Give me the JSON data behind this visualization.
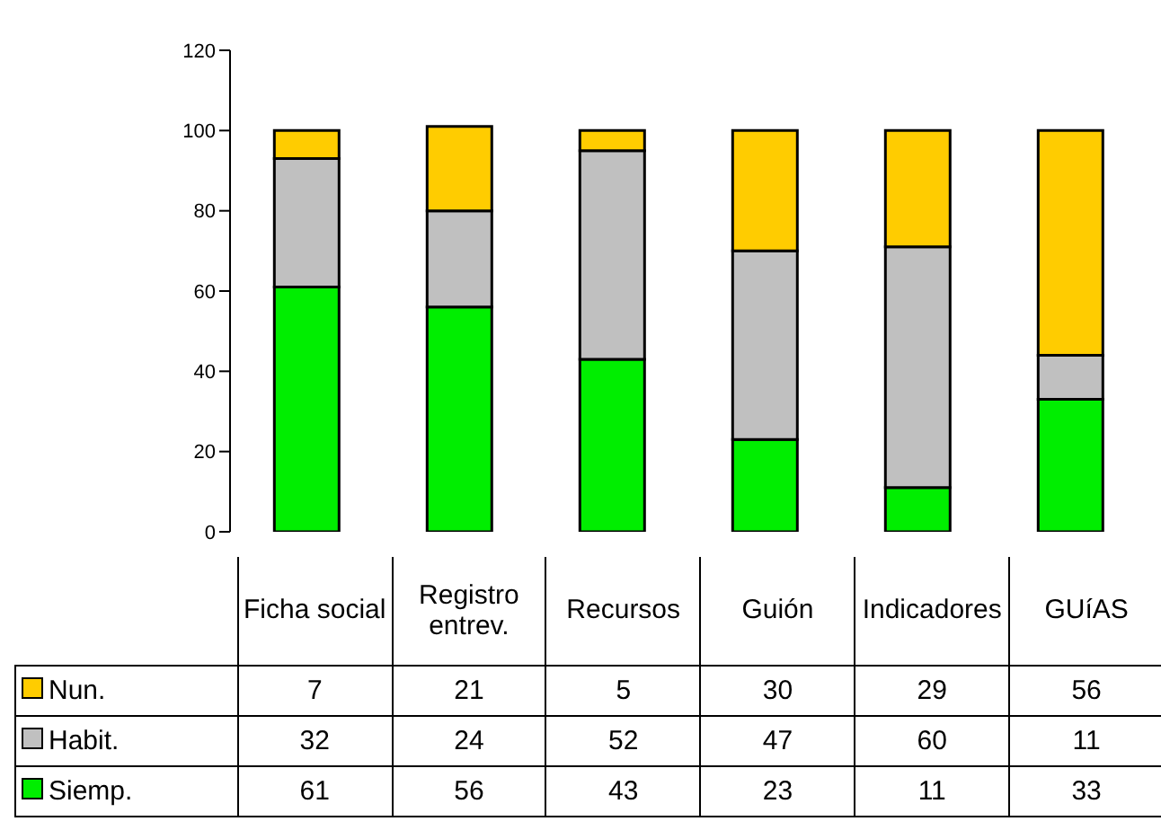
{
  "chart_data": {
    "type": "bar",
    "stacked": true,
    "categories": [
      "Ficha social",
      "Registro entrev.",
      "Recursos",
      "Guión",
      "Indicadores",
      "GUíAS"
    ],
    "series": [
      {
        "name": "Siemp.",
        "color": "#00ee00",
        "values": [
          61,
          56,
          43,
          23,
          11,
          33
        ]
      },
      {
        "name": "Habit.",
        "color": "#c0c0c0",
        "values": [
          32,
          24,
          52,
          47,
          60,
          11
        ]
      },
      {
        "name": "Nun.",
        "color": "#ffcc00",
        "values": [
          7,
          21,
          5,
          30,
          29,
          56
        ]
      }
    ],
    "ylim": [
      0,
      120
    ],
    "yticks": [
      0,
      20,
      40,
      60,
      80,
      100,
      120
    ],
    "data_labels": true,
    "legend": "bottom left"
  }
}
